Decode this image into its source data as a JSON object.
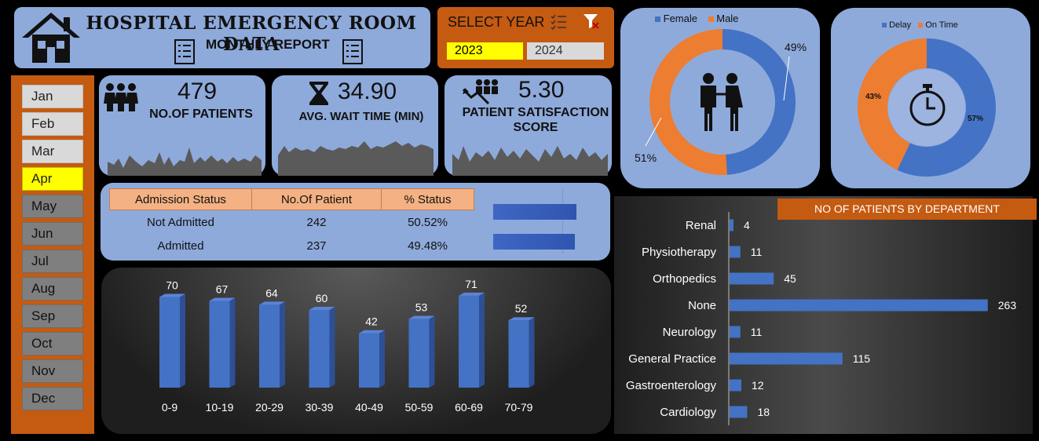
{
  "header": {
    "title": "HOSPITAL EMERGENCY ROOM DATA",
    "subtitle": "MONTHLY REPORT"
  },
  "year_selector": {
    "label": "SELECT YEAR",
    "years": [
      "2023",
      "2024"
    ],
    "selected": "2023"
  },
  "months": [
    "Jan",
    "Feb",
    "Mar",
    "Apr",
    "May",
    "Jun",
    "Jul",
    "Aug",
    "Sep",
    "Oct",
    "Nov",
    "Dec"
  ],
  "selected_month": "Apr",
  "kpis": {
    "patients": {
      "value": "479",
      "label": "NO.OF PATIENTS"
    },
    "wait": {
      "value": "34.90",
      "label": "AVG. WAIT TIME (MIN)"
    },
    "satisfaction": {
      "value": "5.30",
      "label_line1": "PATIENT SATISFACTION",
      "label_line2": "SCORE"
    }
  },
  "admission": {
    "headers": [
      "Admission Status",
      "No.Of Patient",
      "% Status"
    ],
    "rows": [
      {
        "status": "Not Admitted",
        "count": "242",
        "pct": "50.52%",
        "fraction": 0.5052
      },
      {
        "status": "Admitted",
        "count": "237",
        "pct": "49.48%",
        "fraction": 0.4948
      }
    ]
  },
  "gender_chart": {
    "legend": [
      "Female",
      "Male"
    ],
    "female_label": "49%",
    "male_label": "51%",
    "female": 49,
    "male": 51,
    "colors": {
      "female": "#4472c4",
      "male": "#ed7d31"
    }
  },
  "timing_chart": {
    "legend": [
      "Delay",
      "On Time"
    ],
    "delay_label": "57%",
    "ontime_label": "43%",
    "delay": 57,
    "ontime": 43
  },
  "chart_data": [
    {
      "type": "bar",
      "categories": [
        "0-9",
        "10-19",
        "20-29",
        "30-39",
        "40-49",
        "50-59",
        "60-69",
        "70-79"
      ],
      "values": [
        70,
        67,
        64,
        60,
        42,
        53,
        71,
        52
      ]
    },
    {
      "type": "bar",
      "title": "NO OF PATIENTS BY DEPARTMENT",
      "categories": [
        "Renal",
        "Physiotherapy",
        "Orthopedics",
        "None",
        "Neurology",
        "General Practice",
        "Gastroenterology",
        "Cardiology"
      ],
      "values": [
        4,
        11,
        45,
        263,
        11,
        115,
        12,
        18
      ]
    }
  ]
}
